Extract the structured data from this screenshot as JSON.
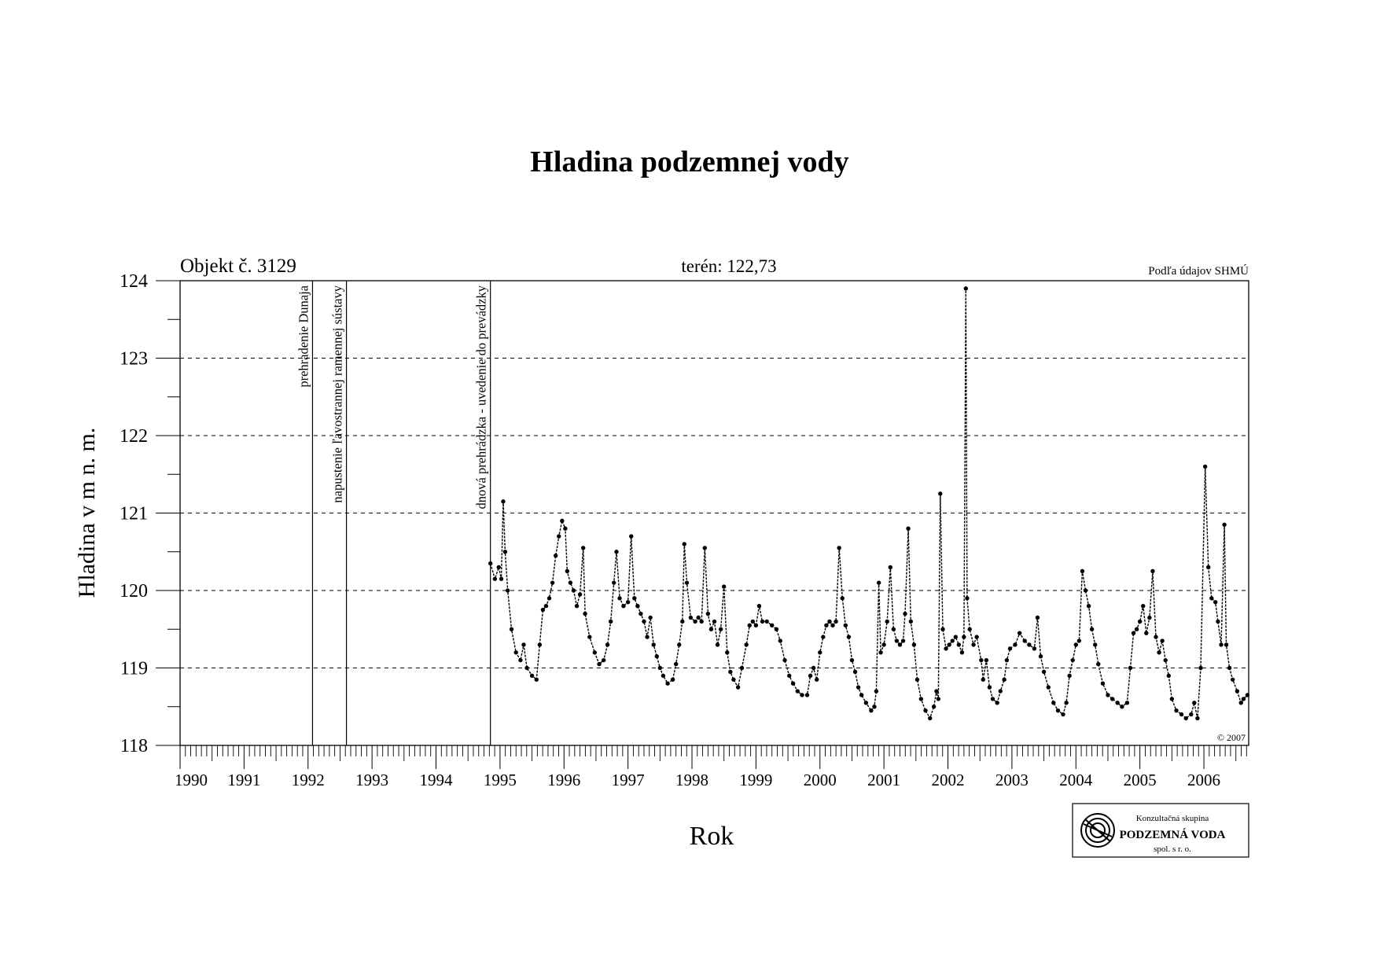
{
  "title": "Hladina podzemnej vody",
  "object_label": "Objekt č. 3129",
  "terrain_label": "terén: 122,73",
  "source_label": "Podľa údajov SHMÚ",
  "copyright": "© 2007",
  "logo": {
    "line1": "Konzultačná skupina",
    "line2": "PODZEMNÁ VODA",
    "line3": "spol. s r. o.",
    "icon": "podzemna-voda-logo-icon"
  },
  "chart_data": {
    "type": "line",
    "title": "Hladina podzemnej vody",
    "xlabel": "Rok",
    "ylabel": "Hladina v m n. m.",
    "xlim": [
      1990.0,
      2006.7
    ],
    "ylim": [
      118,
      124
    ],
    "y_ticks": [
      118,
      119,
      120,
      121,
      122,
      123,
      124
    ],
    "x_tick_labels": [
      "1990",
      "1991",
      "1992",
      "1993",
      "1994",
      "1995",
      "1996",
      "1997",
      "1998",
      "1999",
      "2000",
      "2001",
      "2002",
      "2003",
      "2004",
      "2005",
      "2006"
    ],
    "grid": "horizontal-dashed",
    "events": [
      {
        "x": 1992.07,
        "label": "prehradenie Dunaja"
      },
      {
        "x": 1992.6,
        "label": "napustenie ľavostrannej ramennej sústavy"
      },
      {
        "x": 1994.85,
        "label": "dnová prehrádzka - uvedenie do prevádzky"
      }
    ],
    "series": [
      {
        "name": "",
        "points": [
          [
            1994.85,
            120.35
          ],
          [
            1994.92,
            120.15
          ],
          [
            1994.98,
            120.3
          ],
          [
            1995.02,
            120.15
          ],
          [
            1995.05,
            121.15
          ],
          [
            1995.08,
            120.5
          ],
          [
            1995.12,
            120.0
          ],
          [
            1995.18,
            119.5
          ],
          [
            1995.25,
            119.2
          ],
          [
            1995.32,
            119.1
          ],
          [
            1995.37,
            119.3
          ],
          [
            1995.42,
            119.0
          ],
          [
            1995.5,
            118.9
          ],
          [
            1995.57,
            118.85
          ],
          [
            1995.62,
            119.3
          ],
          [
            1995.67,
            119.75
          ],
          [
            1995.72,
            119.8
          ],
          [
            1995.77,
            119.9
          ],
          [
            1995.82,
            120.1
          ],
          [
            1995.87,
            120.45
          ],
          [
            1995.92,
            120.7
          ],
          [
            1995.97,
            120.9
          ],
          [
            1996.02,
            120.8
          ],
          [
            1996.05,
            120.25
          ],
          [
            1996.1,
            120.1
          ],
          [
            1996.15,
            120.0
          ],
          [
            1996.2,
            119.8
          ],
          [
            1996.25,
            119.95
          ],
          [
            1996.3,
            120.55
          ],
          [
            1996.33,
            119.7
          ],
          [
            1996.4,
            119.4
          ],
          [
            1996.48,
            119.2
          ],
          [
            1996.55,
            119.05
          ],
          [
            1996.62,
            119.1
          ],
          [
            1996.68,
            119.3
          ],
          [
            1996.73,
            119.6
          ],
          [
            1996.78,
            120.1
          ],
          [
            1996.82,
            120.5
          ],
          [
            1996.87,
            119.9
          ],
          [
            1996.93,
            119.8
          ],
          [
            1997.0,
            119.85
          ],
          [
            1997.05,
            120.7
          ],
          [
            1997.1,
            119.9
          ],
          [
            1997.15,
            119.8
          ],
          [
            1997.2,
            119.7
          ],
          [
            1997.25,
            119.6
          ],
          [
            1997.3,
            119.4
          ],
          [
            1997.35,
            119.65
          ],
          [
            1997.4,
            119.3
          ],
          [
            1997.45,
            119.15
          ],
          [
            1997.5,
            119.0
          ],
          [
            1997.55,
            118.9
          ],
          [
            1997.62,
            118.8
          ],
          [
            1997.7,
            118.85
          ],
          [
            1997.75,
            119.05
          ],
          [
            1997.8,
            119.3
          ],
          [
            1997.85,
            119.6
          ],
          [
            1997.88,
            120.6
          ],
          [
            1997.92,
            120.1
          ],
          [
            1997.98,
            119.65
          ],
          [
            1998.05,
            119.6
          ],
          [
            1998.1,
            119.65
          ],
          [
            1998.15,
            119.6
          ],
          [
            1998.2,
            120.55
          ],
          [
            1998.25,
            119.7
          ],
          [
            1998.3,
            119.5
          ],
          [
            1998.35,
            119.6
          ],
          [
            1998.4,
            119.3
          ],
          [
            1998.45,
            119.5
          ],
          [
            1998.5,
            120.05
          ],
          [
            1998.55,
            119.2
          ],
          [
            1998.6,
            118.95
          ],
          [
            1998.65,
            118.85
          ],
          [
            1998.72,
            118.75
          ],
          [
            1998.78,
            119.0
          ],
          [
            1998.85,
            119.3
          ],
          [
            1998.9,
            119.55
          ],
          [
            1998.95,
            119.6
          ],
          [
            1999.0,
            119.55
          ],
          [
            1999.05,
            119.8
          ],
          [
            1999.1,
            119.6
          ],
          [
            1999.17,
            119.6
          ],
          [
            1999.25,
            119.55
          ],
          [
            1999.32,
            119.5
          ],
          [
            1999.38,
            119.35
          ],
          [
            1999.45,
            119.1
          ],
          [
            1999.52,
            118.9
          ],
          [
            1999.58,
            118.8
          ],
          [
            1999.65,
            118.7
          ],
          [
            1999.72,
            118.65
          ],
          [
            1999.8,
            118.65
          ],
          [
            1999.85,
            118.9
          ],
          [
            1999.9,
            119.0
          ],
          [
            1999.95,
            118.85
          ],
          [
            2000.0,
            119.2
          ],
          [
            2000.05,
            119.4
          ],
          [
            2000.1,
            119.55
          ],
          [
            2000.15,
            119.6
          ],
          [
            2000.2,
            119.55
          ],
          [
            2000.25,
            119.6
          ],
          [
            2000.3,
            120.55
          ],
          [
            2000.35,
            119.9
          ],
          [
            2000.4,
            119.55
          ],
          [
            2000.45,
            119.4
          ],
          [
            2000.5,
            119.1
          ],
          [
            2000.55,
            118.95
          ],
          [
            2000.6,
            118.75
          ],
          [
            2000.65,
            118.65
          ],
          [
            2000.72,
            118.55
          ],
          [
            2000.8,
            118.45
          ],
          [
            2000.85,
            118.5
          ],
          [
            2000.88,
            118.7
          ],
          [
            2000.92,
            120.1
          ],
          [
            2000.95,
            119.2
          ],
          [
            2001.0,
            119.3
          ],
          [
            2001.05,
            119.6
          ],
          [
            2001.1,
            120.3
          ],
          [
            2001.15,
            119.5
          ],
          [
            2001.2,
            119.35
          ],
          [
            2001.25,
            119.3
          ],
          [
            2001.3,
            119.35
          ],
          [
            2001.33,
            119.7
          ],
          [
            2001.38,
            120.8
          ],
          [
            2001.42,
            119.6
          ],
          [
            2001.47,
            119.3
          ],
          [
            2001.52,
            118.85
          ],
          [
            2001.58,
            118.6
          ],
          [
            2001.65,
            118.45
          ],
          [
            2001.72,
            118.35
          ],
          [
            2001.78,
            118.5
          ],
          [
            2001.82,
            118.7
          ],
          [
            2001.85,
            118.6
          ],
          [
            2001.88,
            121.25
          ],
          [
            2001.92,
            119.5
          ],
          [
            2001.97,
            119.25
          ],
          [
            2002.02,
            119.3
          ],
          [
            2002.07,
            119.35
          ],
          [
            2002.12,
            119.4
          ],
          [
            2002.17,
            119.3
          ],
          [
            2002.22,
            119.2
          ],
          [
            2002.25,
            119.4
          ],
          [
            2002.28,
            123.9
          ],
          [
            2002.3,
            119.9
          ],
          [
            2002.34,
            119.5
          ],
          [
            2002.4,
            119.3
          ],
          [
            2002.45,
            119.4
          ],
          [
            2002.52,
            119.1
          ],
          [
            2002.55,
            118.85
          ],
          [
            2002.6,
            119.1
          ],
          [
            2002.65,
            118.75
          ],
          [
            2002.7,
            118.6
          ],
          [
            2002.77,
            118.55
          ],
          [
            2002.82,
            118.7
          ],
          [
            2002.88,
            118.85
          ],
          [
            2002.92,
            119.1
          ],
          [
            2002.97,
            119.25
          ],
          [
            2003.05,
            119.3
          ],
          [
            2003.12,
            119.45
          ],
          [
            2003.2,
            119.35
          ],
          [
            2003.27,
            119.3
          ],
          [
            2003.35,
            119.25
          ],
          [
            2003.4,
            119.65
          ],
          [
            2003.45,
            119.15
          ],
          [
            2003.5,
            118.95
          ],
          [
            2003.57,
            118.75
          ],
          [
            2003.65,
            118.55
          ],
          [
            2003.72,
            118.45
          ],
          [
            2003.8,
            118.4
          ],
          [
            2003.85,
            118.55
          ],
          [
            2003.9,
            118.9
          ],
          [
            2003.95,
            119.1
          ],
          [
            2004.0,
            119.3
          ],
          [
            2004.05,
            119.35
          ],
          [
            2004.1,
            120.25
          ],
          [
            2004.15,
            120.0
          ],
          [
            2004.2,
            119.8
          ],
          [
            2004.25,
            119.5
          ],
          [
            2004.3,
            119.3
          ],
          [
            2004.35,
            119.05
          ],
          [
            2004.42,
            118.8
          ],
          [
            2004.5,
            118.65
          ],
          [
            2004.57,
            118.6
          ],
          [
            2004.65,
            118.55
          ],
          [
            2004.72,
            118.5
          ],
          [
            2004.8,
            118.55
          ],
          [
            2004.85,
            119.0
          ],
          [
            2004.9,
            119.45
          ],
          [
            2004.95,
            119.5
          ],
          [
            2005.0,
            119.6
          ],
          [
            2005.05,
            119.8
          ],
          [
            2005.1,
            119.45
          ],
          [
            2005.15,
            119.65
          ],
          [
            2005.2,
            120.25
          ],
          [
            2005.25,
            119.4
          ],
          [
            2005.3,
            119.2
          ],
          [
            2005.35,
            119.35
          ],
          [
            2005.4,
            119.1
          ],
          [
            2005.45,
            118.9
          ],
          [
            2005.5,
            118.6
          ],
          [
            2005.57,
            118.45
          ],
          [
            2005.65,
            118.4
          ],
          [
            2005.72,
            118.35
          ],
          [
            2005.8,
            118.4
          ],
          [
            2005.85,
            118.55
          ],
          [
            2005.9,
            118.35
          ],
          [
            2005.95,
            119.0
          ],
          [
            2006.02,
            121.6
          ],
          [
            2006.07,
            120.3
          ],
          [
            2006.12,
            119.9
          ],
          [
            2006.18,
            119.85
          ],
          [
            2006.22,
            119.6
          ],
          [
            2006.27,
            119.3
          ],
          [
            2006.32,
            120.85
          ],
          [
            2006.35,
            119.3
          ],
          [
            2006.4,
            119.0
          ],
          [
            2006.45,
            118.85
          ],
          [
            2006.52,
            118.7
          ],
          [
            2006.58,
            118.55
          ],
          [
            2006.62,
            118.6
          ],
          [
            2006.68,
            118.65
          ]
        ]
      }
    ]
  }
}
